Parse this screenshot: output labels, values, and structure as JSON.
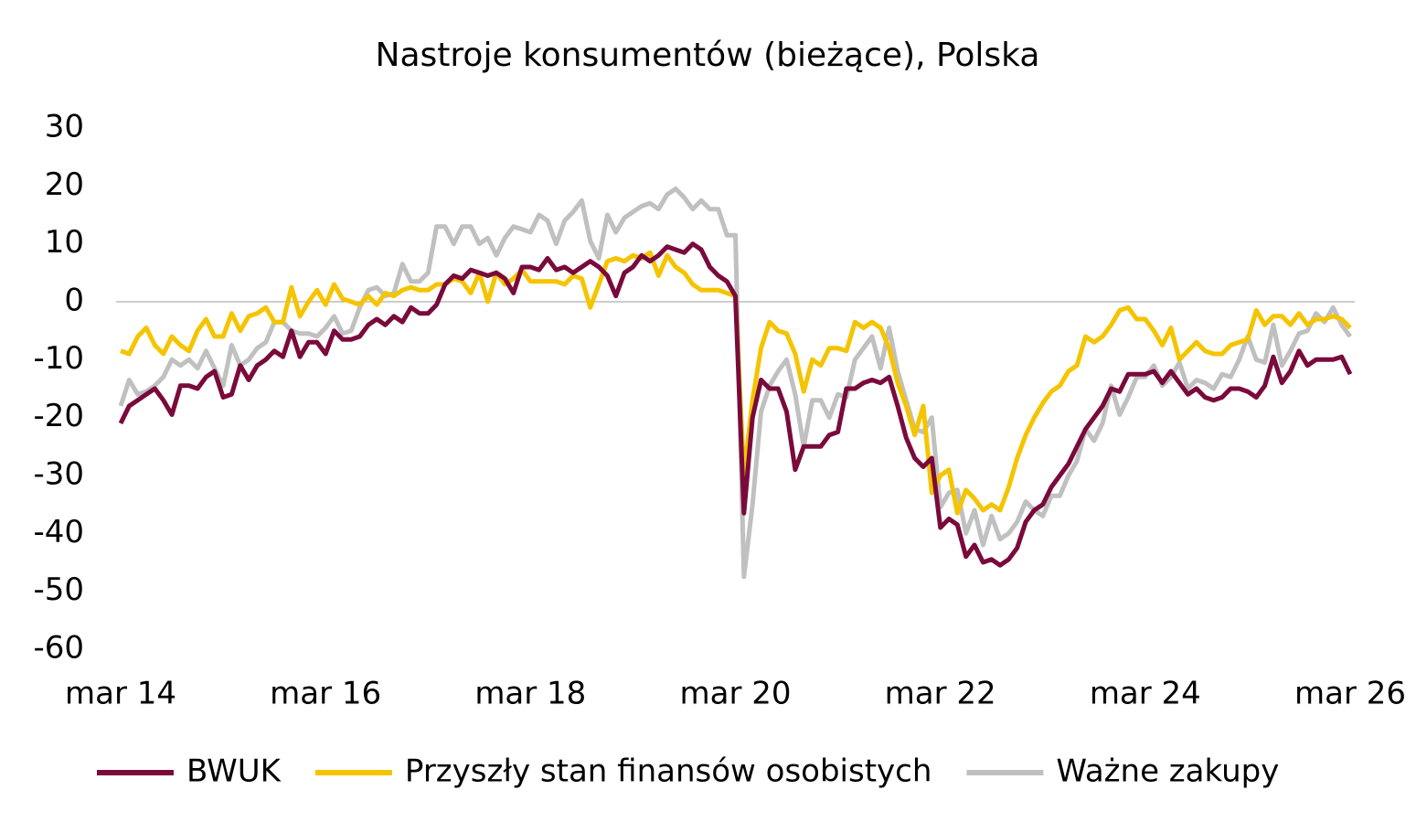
{
  "chart_data": {
    "type": "line",
    "title": "Nastroje konsumentów (bieżące), Polska",
    "categories": [
      "mar 14",
      null,
      null,
      null,
      null,
      null,
      null,
      null,
      null,
      null,
      null,
      null,
      null,
      null,
      null,
      null,
      null,
      null,
      null,
      null,
      null,
      null,
      null,
      null,
      "mar 16",
      null,
      null,
      null,
      null,
      null,
      null,
      null,
      null,
      null,
      null,
      null,
      null,
      null,
      null,
      null,
      null,
      null,
      null,
      null,
      null,
      null,
      null,
      null,
      "mar 18",
      null,
      null,
      null,
      null,
      null,
      null,
      null,
      null,
      null,
      null,
      null,
      null,
      null,
      null,
      null,
      null,
      null,
      null,
      null,
      null,
      null,
      null,
      null,
      "mar 20",
      null,
      null,
      null,
      null,
      null,
      null,
      null,
      null,
      null,
      null,
      null,
      null,
      null,
      null,
      null,
      null,
      null,
      null,
      null,
      null,
      null,
      null,
      null,
      "mar 22",
      null,
      null,
      null,
      null,
      null,
      null,
      null,
      null,
      null,
      null,
      null,
      null,
      null,
      null,
      null,
      null,
      null,
      null,
      null,
      null,
      null,
      null,
      null,
      "mar 24",
      null,
      null,
      null,
      null,
      null,
      null,
      null,
      null,
      null,
      null,
      null,
      null,
      null,
      null,
      null,
      null,
      null,
      null,
      null,
      null,
      null,
      null,
      null,
      "mar 26"
    ],
    "series": [
      {
        "name": "BWUK",
        "color": "#7a0a3c",
        "values": [
          -21,
          -18,
          -17,
          -16,
          -15,
          -17,
          -19.5,
          -14.5,
          -14.5,
          -15,
          -13,
          -12,
          -16.5,
          -16,
          -11,
          -13.5,
          -11,
          -10,
          -8.5,
          -9.5,
          -5,
          -9.5,
          -7,
          -7,
          -9,
          -5,
          -6.5,
          -6.5,
          -6,
          -4,
          -3,
          -4,
          -2.5,
          -3.5,
          -1,
          -2,
          -2,
          -0.5,
          3,
          4.5,
          4,
          5.5,
          5,
          4.5,
          5,
          4,
          1.5,
          6,
          6,
          5.5,
          7.5,
          5.5,
          6,
          5,
          6,
          7,
          6,
          4.5,
          1,
          5,
          6,
          8,
          7,
          8,
          9.5,
          9,
          8.5,
          10,
          9,
          6,
          4.5,
          3.5,
          1,
          -36.5,
          -20,
          -13.5,
          -15,
          -15,
          -19,
          -29,
          -25,
          -25,
          -25,
          -23,
          -22.5,
          -15,
          -15,
          -14,
          -13.5,
          -14,
          -13,
          -18,
          -23.5,
          -27,
          -28.5,
          -27,
          -39,
          -37.5,
          -38.5,
          -44,
          -42,
          -45,
          -44.5,
          -45.5,
          -44.5,
          -42.5,
          -38,
          -36,
          -35,
          -32,
          -30,
          -28,
          -25,
          -22,
          -20,
          -18,
          -15,
          -15.5,
          -12.5,
          -12.5,
          -12.5,
          -12,
          -14,
          -12,
          -14,
          -16,
          -15,
          -16.5,
          -17,
          -16.5,
          -15,
          -15,
          -15.5,
          -16.5,
          -14.5,
          -9.5,
          -14,
          -12,
          -8.5,
          -11,
          -10,
          -10,
          -10,
          -9.5,
          -12.5
        ]
      },
      {
        "name": "Przyszły stan finansów osobistych",
        "color": "#f5c400",
        "values": [
          -8.5,
          -9,
          -6,
          -4.5,
          -7.5,
          -9,
          -6,
          -7.5,
          -8.5,
          -5,
          -3,
          -6,
          -6,
          -2,
          -5,
          -2.5,
          -2,
          -1,
          -3.5,
          -3.5,
          2.5,
          -2.5,
          0,
          2,
          -0.5,
          3,
          0.5,
          0,
          -0.5,
          1,
          -0.5,
          1.5,
          1,
          2,
          2.5,
          2,
          2,
          3,
          3,
          4,
          3.5,
          1.5,
          5,
          0,
          5,
          3,
          4,
          5.5,
          3.5,
          3.5,
          3.5,
          3.5,
          3,
          4.5,
          4,
          -1,
          3,
          7,
          7.5,
          7,
          8,
          7.5,
          8.5,
          4.5,
          8,
          6,
          5,
          3,
          2,
          2,
          2,
          1.5,
          1,
          -30,
          -17,
          -8,
          -3.5,
          -5,
          -5.5,
          -9,
          -15.5,
          -10,
          -11,
          -8,
          -8,
          -8.5,
          -3.5,
          -4.5,
          -3.5,
          -4.5,
          -8,
          -14,
          -18,
          -23,
          -18,
          -33,
          -30,
          -29,
          -36.5,
          -32.5,
          -34,
          -36,
          -35,
          -36,
          -32,
          -27,
          -23,
          -20,
          -17.5,
          -15.5,
          -14.5,
          -12,
          -11,
          -6,
          -7,
          -6,
          -4,
          -1.5,
          -1,
          -3,
          -3,
          -5,
          -7.5,
          -4.5,
          -10,
          -8.5,
          -7,
          -8.5,
          -9,
          -9,
          -7.5,
          -7,
          -6.5,
          -1.5,
          -4,
          -2.5,
          -2.5,
          -4,
          -2,
          -4,
          -3,
          -3,
          -2.5,
          -3,
          -4.5
        ]
      },
      {
        "name": "Ważne zakupy",
        "color": "#c0c0c0",
        "values": [
          -18,
          -13.5,
          -16,
          -15.5,
          -14.5,
          -13,
          -10,
          -11,
          -10,
          -11.5,
          -8.5,
          -11.5,
          -14.5,
          -7.5,
          -11,
          -10,
          -8,
          -7,
          -3.5,
          -3.5,
          -5,
          -5.5,
          -5.5,
          -6,
          -4.5,
          -2.5,
          -5.5,
          -5,
          -1,
          2,
          2.5,
          1,
          1.5,
          6.5,
          3.5,
          3.5,
          5,
          13,
          13,
          10,
          13,
          13,
          10,
          11,
          8,
          11,
          13,
          12.5,
          12,
          15,
          14,
          10,
          14,
          15.5,
          17.5,
          10.5,
          7.5,
          15,
          12,
          14.5,
          15.5,
          16.5,
          17,
          16,
          18.5,
          19.5,
          18,
          16,
          17.5,
          16,
          16,
          11.5,
          11.5,
          -47.5,
          -35,
          -19,
          -14.5,
          -12,
          -10,
          -16,
          -25,
          -17,
          -17,
          -20,
          -16,
          -16.5,
          -10,
          -8,
          -6,
          -11.5,
          -4.5,
          -12,
          -17,
          -22,
          -22.5,
          -20,
          -35.5,
          -33,
          -32.5,
          -40,
          -36,
          -42,
          -37,
          -41,
          -40,
          -38,
          -34.5,
          -36,
          -37,
          -33.5,
          -33.5,
          -30,
          -27.5,
          -22,
          -24,
          -21,
          -14.5,
          -19.5,
          -16.5,
          -13,
          -13,
          -11,
          -14.5,
          -13,
          -10.5,
          -15,
          -13.5,
          -14,
          -15,
          -12.5,
          -13,
          -10,
          -6,
          -10,
          -10.5,
          -4,
          -11,
          -8.5,
          -5.5,
          -5,
          -2,
          -3.5,
          -1,
          -4,
          -6
        ]
      }
    ],
    "ylim": [
      -60,
      30
    ],
    "yticks": [
      -60,
      -50,
      -40,
      -30,
      -20,
      -10,
      0,
      10,
      20,
      30
    ],
    "grid": false,
    "legend": "bottom"
  }
}
